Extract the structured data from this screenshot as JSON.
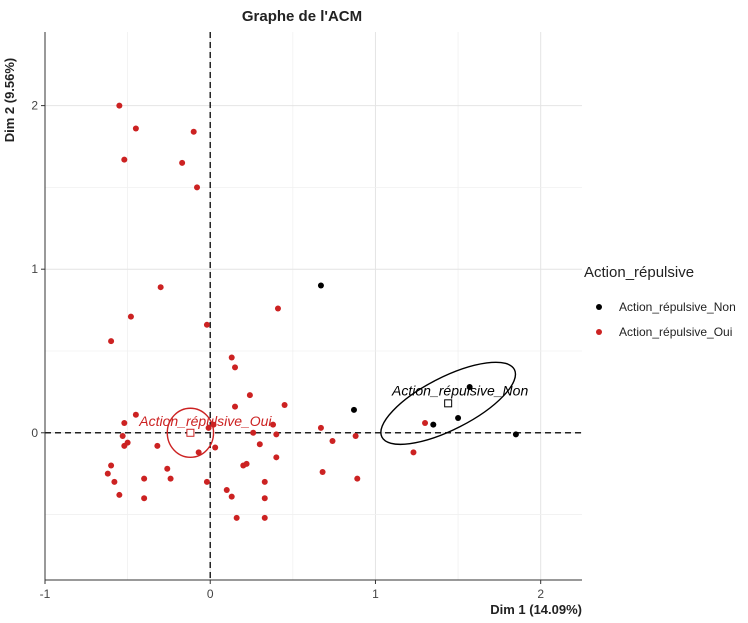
{
  "chart_data": {
    "type": "scatter",
    "title": "Graphe de l'ACM",
    "xlabel": "Dim 1 (14.09%)",
    "ylabel": "Dim 2 (9.56%)",
    "xlim": [
      -1.0,
      2.25
    ],
    "ylim": [
      -0.9,
      2.45
    ],
    "xticks": [
      -1,
      0,
      1,
      2
    ],
    "yticks": [
      0,
      1,
      2
    ],
    "grid": true,
    "legend": {
      "title": "Action_répulsive",
      "position": "right",
      "entries": [
        "Action_répulsive_Non",
        "Action_répulsive_Oui"
      ]
    },
    "series": [
      {
        "name": "Action_répulsive_Non",
        "color": "#000000",
        "points": [
          [
            0.67,
            0.9
          ],
          [
            0.87,
            0.14
          ],
          [
            1.35,
            0.05
          ],
          [
            1.5,
            0.09
          ],
          [
            1.57,
            0.28
          ],
          [
            1.85,
            -0.01
          ]
        ],
        "centroid": [
          1.44,
          0.18
        ],
        "centroid_label": "Action_répulsive_Non",
        "ellipse": {
          "rx_units": 0.45,
          "ry_units": 0.16,
          "angle_deg": -27
        }
      },
      {
        "name": "Action_répulsive_Oui",
        "color": "#cc2222",
        "points": [
          [
            -0.55,
            2.0
          ],
          [
            -0.45,
            1.86
          ],
          [
            -0.52,
            1.67
          ],
          [
            -0.1,
            1.84
          ],
          [
            -0.17,
            1.65
          ],
          [
            -0.08,
            1.5
          ],
          [
            -0.3,
            0.89
          ],
          [
            -0.48,
            0.71
          ],
          [
            -0.6,
            0.56
          ],
          [
            -0.02,
            0.66
          ],
          [
            0.41,
            0.76
          ],
          [
            0.13,
            0.46
          ],
          [
            0.15,
            0.4
          ],
          [
            0.24,
            0.23
          ],
          [
            0.15,
            0.16
          ],
          [
            0.45,
            0.17
          ],
          [
            -0.45,
            0.11
          ],
          [
            -0.52,
            0.06
          ],
          [
            -0.53,
            -0.02
          ],
          [
            -0.5,
            -0.06
          ],
          [
            -0.52,
            -0.08
          ],
          [
            -0.32,
            -0.08
          ],
          [
            -0.6,
            -0.2
          ],
          [
            -0.62,
            -0.25
          ],
          [
            -0.58,
            -0.3
          ],
          [
            -0.55,
            -0.38
          ],
          [
            -0.4,
            -0.4
          ],
          [
            -0.4,
            -0.28
          ],
          [
            -0.26,
            -0.22
          ],
          [
            -0.24,
            -0.28
          ],
          [
            -0.07,
            -0.12
          ],
          [
            -0.01,
            0.03
          ],
          [
            0.02,
            0.05
          ],
          [
            0.03,
            -0.09
          ],
          [
            -0.02,
            -0.3
          ],
          [
            0.1,
            -0.35
          ],
          [
            0.13,
            -0.39
          ],
          [
            0.16,
            -0.52
          ],
          [
            0.2,
            -0.2
          ],
          [
            0.22,
            -0.19
          ],
          [
            0.26,
            0.0
          ],
          [
            0.3,
            -0.07
          ],
          [
            0.33,
            -0.3
          ],
          [
            0.33,
            -0.4
          ],
          [
            0.33,
            -0.52
          ],
          [
            0.38,
            0.05
          ],
          [
            0.4,
            -0.01
          ],
          [
            0.4,
            -0.15
          ],
          [
            0.67,
            0.03
          ],
          [
            0.68,
            -0.24
          ],
          [
            0.74,
            -0.05
          ],
          [
            0.88,
            -0.02
          ],
          [
            0.89,
            -0.28
          ],
          [
            1.23,
            -0.12
          ],
          [
            1.3,
            0.06
          ]
        ],
        "centroid": [
          -0.12,
          0.0
        ],
        "centroid_label": "Action_répulsive_Oui",
        "ellipse": {
          "rx_units": 0.14,
          "ry_units": 0.15,
          "angle_deg": 0
        }
      }
    ]
  }
}
